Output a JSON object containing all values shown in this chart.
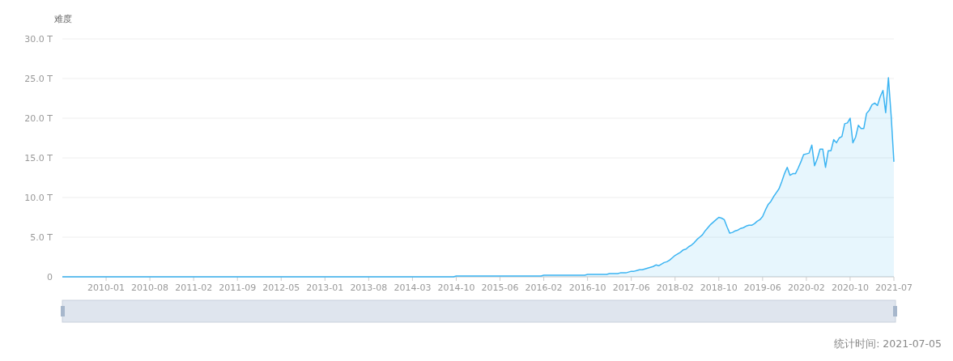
{
  "chart_data": {
    "type": "area",
    "ylabel": "难度",
    "categories": [
      null,
      null,
      null,
      null,
      null,
      null,
      null,
      null,
      null,
      null,
      null,
      null,
      null,
      null,
      null,
      null,
      "2010-01",
      null,
      null,
      null,
      null,
      null,
      null,
      null,
      null,
      null,
      null,
      null,
      null,
      null,
      null,
      null,
      "2010-08",
      null,
      null,
      null,
      null,
      null,
      null,
      null,
      null,
      null,
      null,
      null,
      null,
      null,
      null,
      null,
      "2011-02",
      null,
      null,
      null,
      null,
      null,
      null,
      null,
      null,
      null,
      null,
      null,
      null,
      null,
      null,
      null,
      "2011-09",
      null,
      null,
      null,
      null,
      null,
      null,
      null,
      null,
      null,
      null,
      null,
      null,
      null,
      null,
      null,
      "2012-05",
      null,
      null,
      null,
      null,
      null,
      null,
      null,
      null,
      null,
      null,
      null,
      null,
      null,
      null,
      null,
      "2013-01",
      null,
      null,
      null,
      null,
      null,
      null,
      null,
      null,
      null,
      null,
      null,
      null,
      null,
      null,
      null,
      "2013-08",
      null,
      null,
      null,
      null,
      null,
      null,
      null,
      null,
      null,
      null,
      null,
      null,
      null,
      null,
      null,
      "2014-03",
      null,
      null,
      null,
      null,
      null,
      null,
      null,
      null,
      null,
      null,
      null,
      null,
      null,
      null,
      null,
      "2014-10",
      null,
      null,
      null,
      null,
      null,
      null,
      null,
      null,
      null,
      null,
      null,
      null,
      null,
      null,
      null,
      "2015-06",
      null,
      null,
      null,
      null,
      null,
      null,
      null,
      null,
      null,
      null,
      null,
      null,
      null,
      null,
      null,
      "2016-02",
      null,
      null,
      null,
      null,
      null,
      null,
      null,
      null,
      null,
      null,
      null,
      null,
      null,
      null,
      null,
      "2016-10",
      null,
      null,
      null,
      null,
      null,
      null,
      null,
      null,
      null,
      null,
      null,
      null,
      null,
      null,
      null,
      "2017-06",
      null,
      null,
      null,
      null,
      null,
      null,
      null,
      null,
      null,
      null,
      null,
      null,
      null,
      null,
      null,
      "2018-02",
      null,
      null,
      null,
      null,
      null,
      null,
      null,
      null,
      null,
      null,
      null,
      null,
      null,
      null,
      null,
      "2018-10",
      null,
      null,
      null,
      null,
      null,
      null,
      null,
      null,
      null,
      null,
      null,
      null,
      null,
      null,
      null,
      "2019-06",
      null,
      null,
      null,
      null,
      null,
      null,
      null,
      null,
      null,
      null,
      null,
      null,
      null,
      null,
      null,
      "2020-02",
      null,
      null,
      null,
      null,
      null,
      null,
      null,
      null,
      null,
      null,
      null,
      null,
      null,
      null,
      null,
      "2020-10",
      null,
      null,
      null,
      null,
      null,
      null,
      null,
      null,
      null,
      null,
      null,
      null,
      null,
      null,
      null,
      "2021-07"
    ],
    "values": [
      0,
      0,
      0,
      0,
      0,
      0,
      0,
      0,
      0,
      0,
      0,
      0,
      0,
      0,
      0,
      0,
      0,
      0,
      0,
      0,
      0,
      0,
      0,
      0,
      0,
      0,
      0,
      0,
      0,
      0,
      0,
      0,
      0,
      0,
      0,
      0,
      0,
      0,
      0,
      0,
      0,
      0,
      0,
      0,
      0,
      0,
      0,
      0,
      0,
      0,
      0,
      0,
      0,
      0,
      0,
      0,
      0,
      0,
      0,
      0,
      0,
      0,
      0,
      0,
      0,
      0,
      0,
      0,
      0,
      0,
      0,
      0,
      0,
      0,
      0,
      0,
      0,
      0,
      0,
      0,
      0,
      0,
      0,
      0,
      0,
      0,
      0,
      0,
      0,
      0,
      0,
      0,
      0,
      0,
      0,
      0,
      0,
      0,
      0,
      0,
      0,
      0,
      0,
      0,
      0,
      0,
      0,
      0,
      0,
      0,
      0,
      0,
      0,
      0,
      0,
      0,
      0,
      0,
      0,
      0,
      0,
      0,
      0,
      0,
      0,
      0,
      0,
      0,
      0,
      0,
      0,
      0,
      0,
      0,
      0,
      0,
      0,
      0,
      0,
      0,
      0,
      0,
      0,
      0,
      0.1,
      0.1,
      0.1,
      0.1,
      0.1,
      0.1,
      0.1,
      0.1,
      0.1,
      0.1,
      0.1,
      0.1,
      0.1,
      0.1,
      0.1,
      0.1,
      0.1,
      0.1,
      0.1,
      0.1,
      0.1,
      0.1,
      0.1,
      0.1,
      0.1,
      0.1,
      0.1,
      0.1,
      0.1,
      0.1,
      0.1,
      0.1,
      0.2,
      0.2,
      0.2,
      0.2,
      0.2,
      0.2,
      0.2,
      0.2,
      0.2,
      0.2,
      0.2,
      0.2,
      0.2,
      0.2,
      0.2,
      0.2,
      0.3,
      0.3,
      0.3,
      0.3,
      0.3,
      0.3,
      0.3,
      0.3,
      0.4,
      0.4,
      0.4,
      0.4,
      0.5,
      0.5,
      0.5,
      0.6,
      0.7,
      0.7,
      0.8,
      0.9,
      0.9,
      1.0,
      1.1,
      1.2,
      1.3,
      1.5,
      1.4,
      1.6,
      1.8,
      1.9,
      2.1,
      2.4,
      2.7,
      2.9,
      3.1,
      3.4,
      3.5,
      3.8,
      4.0,
      4.3,
      4.7,
      5.0,
      5.3,
      5.8,
      6.2,
      6.6,
      6.9,
      7.2,
      7.5,
      7.4,
      7.2,
      6.3,
      5.5,
      5.6,
      5.8,
      5.9,
      6.1,
      6.2,
      6.4,
      6.5,
      6.5,
      6.7,
      7.0,
      7.2,
      7.6,
      8.4,
      9.1,
      9.5,
      10.1,
      10.6,
      11.1,
      12.0,
      13.0,
      13.8,
      12.8,
      13.0,
      13.0,
      13.7,
      14.5,
      15.4,
      15.5,
      15.6,
      16.6,
      14.0,
      14.9,
      16.1,
      16.1,
      13.8,
      15.9,
      15.9,
      17.3,
      16.9,
      17.5,
      17.7,
      19.3,
      19.4,
      20.0,
      16.9,
      17.6,
      19.1,
      18.7,
      18.7,
      20.6,
      21.0,
      21.7,
      21.9,
      21.6,
      22.7,
      23.5,
      20.7,
      25.1,
      20.3,
      14.5
    ],
    "color": "#3bb4f2",
    "ylim": [
      0,
      30
    ],
    "yticks": [
      0,
      {
        "value": 5,
        "label": "5.0 T"
      },
      {
        "value": 10,
        "label": "10.0 T"
      },
      {
        "value": 15,
        "label": "15.0 T"
      },
      {
        "value": 20,
        "label": "20.0 T"
      },
      {
        "value": 25,
        "label": "25.0 T"
      },
      {
        "value": 30,
        "label": "30.0 T"
      }
    ],
    "grid": "y",
    "annotations": [
      "统计时间: 2021-07-05"
    ]
  }
}
